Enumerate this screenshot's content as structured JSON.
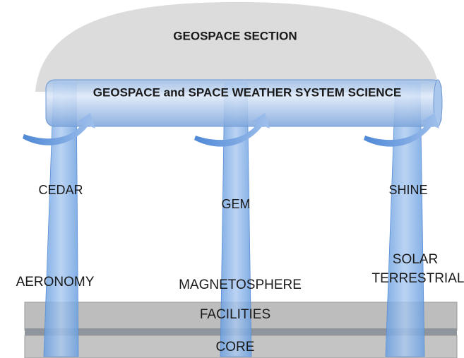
{
  "dome": {
    "label": "GEOSPACE SECTION"
  },
  "cylinder": {
    "label": "GEOSPACE and SPACE WEATHER SYSTEM SCIENCE"
  },
  "pillars": [
    {
      "name": "CEDAR",
      "area": [
        "AERONOMY"
      ]
    },
    {
      "name": "GEM",
      "area": [
        "MAGNETOSPHERE"
      ]
    },
    {
      "name": "SHINE",
      "area": [
        "SOLAR",
        "TERRESTRIAL"
      ]
    }
  ],
  "base": {
    "layers": [
      "FACILITIES",
      "CORE"
    ]
  }
}
